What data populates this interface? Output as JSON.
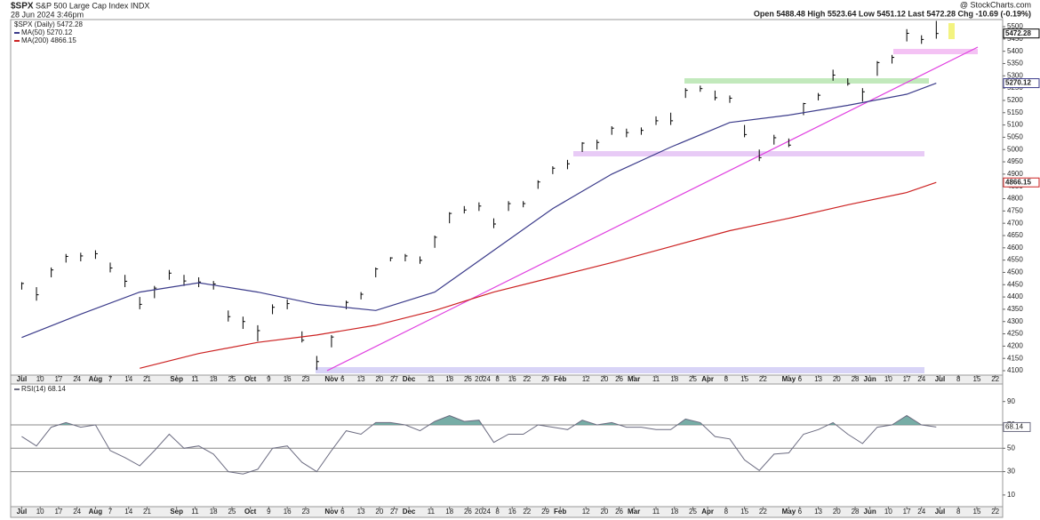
{
  "header": {
    "symbol": "$SPX",
    "name": "S&P 500 Large Cap Index INDX",
    "timestamp": "28 Jun 2024 3:46pm",
    "watermark": "@ StockCharts.com",
    "quote": "Open 5488.48 High 5523.64 Low 5451.12 Last 5472.28 Chg -10.69 (-0.19%)"
  },
  "chart_data": [
    {
      "type": "ohlc",
      "name": "$SPX (Daily) 5472.28",
      "color": "#000000",
      "xlim": [
        -3,
        266
      ],
      "xticks": [
        {
          "value": 0,
          "label": "Jul"
        },
        {
          "value": 5,
          "label": "10"
        },
        {
          "value": 10,
          "label": "17"
        },
        {
          "value": 15,
          "label": "24"
        },
        {
          "value": 20,
          "label": "Aug"
        },
        {
          "value": 24,
          "label": "7"
        },
        {
          "value": 29,
          "label": "14"
        },
        {
          "value": 34,
          "label": "21"
        },
        {
          "value": 42,
          "label": "Sep"
        },
        {
          "value": 47,
          "label": "11"
        },
        {
          "value": 52,
          "label": "18"
        },
        {
          "value": 57,
          "label": "25"
        },
        {
          "value": 62,
          "label": "Oct"
        },
        {
          "value": 67,
          "label": "9"
        },
        {
          "value": 72,
          "label": "16"
        },
        {
          "value": 77,
          "label": "23"
        },
        {
          "value": 84,
          "label": "Nov"
        },
        {
          "value": 87,
          "label": "6"
        },
        {
          "value": 92,
          "label": "13"
        },
        {
          "value": 97,
          "label": "20"
        },
        {
          "value": 101,
          "label": "27"
        },
        {
          "value": 105,
          "label": "Dec"
        },
        {
          "value": 111,
          "label": "11"
        },
        {
          "value": 116,
          "label": "18"
        },
        {
          "value": 121,
          "label": "26"
        },
        {
          "value": 125,
          "label": "2024"
        },
        {
          "value": 129,
          "label": "8"
        },
        {
          "value": 133,
          "label": "16"
        },
        {
          "value": 137,
          "label": "22"
        },
        {
          "value": 142,
          "label": "29"
        },
        {
          "value": 146,
          "label": "Feb"
        },
        {
          "value": 153,
          "label": "12"
        },
        {
          "value": 158,
          "label": "20"
        },
        {
          "value": 162,
          "label": "26"
        },
        {
          "value": 166,
          "label": "Mar"
        },
        {
          "value": 172,
          "label": "11"
        },
        {
          "value": 177,
          "label": "18"
        },
        {
          "value": 182,
          "label": "25"
        },
        {
          "value": 186,
          "label": "Apr"
        },
        {
          "value": 191,
          "label": "8"
        },
        {
          "value": 196,
          "label": "15"
        },
        {
          "value": 201,
          "label": "22"
        },
        {
          "value": 208,
          "label": "May"
        },
        {
          "value": 211,
          "label": "6"
        },
        {
          "value": 216,
          "label": "13"
        },
        {
          "value": 221,
          "label": "20"
        },
        {
          "value": 226,
          "label": "28"
        },
        {
          "value": 230,
          "label": "Jun"
        },
        {
          "value": 235,
          "label": "10"
        },
        {
          "value": 240,
          "label": "17"
        },
        {
          "value": 244,
          "label": "24"
        },
        {
          "value": 249,
          "label": "Jul"
        },
        {
          "value": 254,
          "label": "8"
        },
        {
          "value": 259,
          "label": "15"
        },
        {
          "value": 264,
          "label": "22"
        }
      ],
      "ylim": [
        4082,
        5529
      ],
      "yticks": [
        4100,
        4150,
        4200,
        4250,
        4300,
        4350,
        4400,
        4450,
        4500,
        4550,
        4600,
        4650,
        4700,
        4750,
        4800,
        4850,
        4900,
        4950,
        5000,
        5050,
        5100,
        5150,
        5200,
        5250,
        5300,
        5350,
        5400,
        5450,
        5500
      ],
      "x": [
        0,
        4,
        8,
        12,
        16,
        20,
        24,
        28,
        32,
        36,
        40,
        44,
        48,
        52,
        56,
        60,
        64,
        68,
        72,
        76,
        80,
        84,
        88,
        92,
        96,
        100,
        104,
        108,
        112,
        116,
        120,
        124,
        128,
        132,
        136,
        140,
        144,
        148,
        152,
        156,
        160,
        164,
        168,
        172,
        176,
        180,
        184,
        188,
        192,
        196,
        200,
        204,
        208,
        212,
        216,
        220,
        224,
        228,
        232,
        236,
        240,
        244,
        248
      ],
      "high": [
        4460,
        4440,
        4520,
        4575,
        4580,
        4590,
        4540,
        4490,
        4400,
        4445,
        4510,
        4490,
        4480,
        4465,
        4345,
        4320,
        4285,
        4370,
        4390,
        4260,
        4160,
        4245,
        4385,
        4420,
        4520,
        4562,
        4575,
        4565,
        4650,
        4745,
        4770,
        4785,
        4720,
        4790,
        4790,
        4875,
        4932,
        4958,
        5030,
        5040,
        5095,
        5085,
        5090,
        5135,
        5150,
        5250,
        5260,
        5240,
        5220,
        5100,
        5000,
        5060,
        5045,
        5190,
        5230,
        5325,
        5290,
        5250,
        5360,
        5385,
        5490,
        5465,
        5523.64
      ],
      "low": [
        4430,
        4385,
        4480,
        4540,
        4545,
        4555,
        4500,
        4440,
        4350,
        4395,
        4470,
        4445,
        4440,
        4430,
        4300,
        4270,
        4220,
        4330,
        4350,
        4215,
        4103,
        4195,
        4350,
        4390,
        4480,
        4545,
        4545,
        4535,
        4600,
        4700,
        4740,
        4750,
        4680,
        4750,
        4765,
        4840,
        4900,
        4920,
        4990,
        5000,
        5060,
        5050,
        5060,
        5100,
        5100,
        5210,
        5235,
        5200,
        5190,
        5050,
        4953,
        5020,
        5010,
        5140,
        5200,
        5280,
        5260,
        5195,
        5300,
        5350,
        5440,
        5430,
        5451.12
      ],
      "close": [
        4455,
        4409,
        4510,
        4565,
        4567,
        4576,
        4518,
        4464,
        4370,
        4436,
        4497,
        4465,
        4461,
        4453,
        4320,
        4300,
        4263,
        4358,
        4373,
        4224,
        4137,
        4237,
        4378,
        4411,
        4514,
        4559,
        4567,
        4549,
        4643,
        4740,
        4754,
        4770,
        4697,
        4780,
        4780,
        4868,
        4924,
        4942,
        5026,
        5029,
        5087,
        5069,
        5078,
        5117,
        5117,
        5241,
        5248,
        5211,
        5209,
        5061,
        4967,
        5048,
        5018,
        5187,
        5221,
        5303,
        5268,
        5235,
        5354,
        5375,
        5473,
        5448,
        5472.28
      ],
      "series": [
        {
          "name": "MA(50) 5270.12",
          "color": "#3b3b8a",
          "x": [
            0,
            16,
            32,
            48,
            64,
            80,
            96,
            112,
            128,
            144,
            160,
            176,
            192,
            208,
            224,
            240,
            248
          ],
          "values": [
            4235,
            4330,
            4420,
            4458,
            4420,
            4370,
            4345,
            4420,
            4590,
            4760,
            4900,
            5010,
            5110,
            5140,
            5180,
            5225,
            5270.12
          ]
        },
        {
          "name": "MA(200) 4866.15",
          "color": "#cc2222",
          "x": [
            0,
            16,
            32,
            48,
            64,
            80,
            96,
            112,
            128,
            144,
            160,
            176,
            192,
            208,
            224,
            240,
            248
          ],
          "values": [
            null,
            null,
            4110,
            4170,
            4215,
            4245,
            4285,
            4345,
            4420,
            4480,
            4540,
            4605,
            4670,
            4720,
            4775,
            4825,
            4866.15
          ]
        }
      ]
    },
    {
      "type": "line",
      "name": "RSI(14) 68.14",
      "color": "#6b6b80",
      "fill_color": "#5f9f96",
      "fill_above": 70,
      "xlim": [
        -3,
        266
      ],
      "ylim": [
        0,
        105
      ],
      "yticks": [
        10,
        30,
        50,
        70,
        90
      ],
      "hlines": [
        70,
        50,
        30
      ],
      "x": [
        0,
        4,
        8,
        12,
        16,
        20,
        24,
        28,
        32,
        36,
        40,
        44,
        48,
        52,
        56,
        60,
        64,
        68,
        72,
        76,
        80,
        84,
        88,
        92,
        96,
        100,
        104,
        108,
        112,
        116,
        120,
        124,
        128,
        132,
        136,
        140,
        144,
        148,
        152,
        156,
        160,
        164,
        168,
        172,
        176,
        180,
        184,
        188,
        192,
        196,
        200,
        204,
        208,
        212,
        216,
        220,
        224,
        228,
        232,
        236,
        240,
        244,
        248
      ],
      "values": [
        60,
        52,
        68,
        72,
        68,
        70,
        48,
        42,
        35,
        48,
        62,
        50,
        52,
        45,
        30,
        28,
        32,
        50,
        52,
        38,
        30,
        48,
        65,
        62,
        72,
        72,
        70,
        65,
        73,
        78,
        73,
        74,
        55,
        62,
        62,
        70,
        68,
        66,
        74,
        70,
        72,
        68,
        68,
        66,
        66,
        75,
        72,
        60,
        58,
        40,
        31,
        45,
        46,
        62,
        66,
        72,
        62,
        54,
        68,
        70,
        78,
        70,
        68.14
      ]
    }
  ]
}
